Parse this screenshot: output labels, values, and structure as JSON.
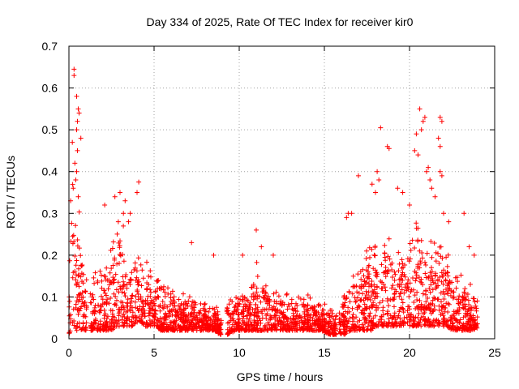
{
  "chart_data": {
    "type": "scatter",
    "title": "Day 334 of 2025, Rate Of TEC Index for receiver kir0",
    "xlabel": "GPS time / hours",
    "ylabel": "ROTI / TECUs",
    "xlim": [
      0,
      25
    ],
    "ylim": [
      0,
      0.7
    ],
    "xticks": [
      0,
      5,
      10,
      15,
      20,
      25
    ],
    "yticks": [
      0,
      0.1,
      0.2,
      0.3,
      0.4,
      0.5,
      0.6,
      0.7
    ],
    "xtick_labels": [
      "0",
      "5",
      "10",
      "15",
      "20",
      "25"
    ],
    "ytick_labels": [
      "0",
      "0.1",
      "0.2",
      "0.3",
      "0.4",
      "0.5",
      "0.6",
      "0.7"
    ],
    "grid": true,
    "marker": "plus",
    "color": "#ff0000",
    "envelope": {
      "hours": [
        0,
        0.1,
        0.2,
        0.3,
        0.4,
        0.5,
        0.6,
        0.7,
        0.8,
        1.0,
        1.3,
        1.6,
        1.9,
        2.2,
        2.5,
        2.8,
        3.1,
        3.4,
        3.7,
        4.0,
        4.2,
        4.5,
        4.8,
        5.1,
        5.4,
        5.7,
        6.0,
        6.3,
        6.6,
        7.0,
        7.5,
        8.0,
        8.5,
        8.9,
        9.3,
        9.8,
        10.3,
        10.8,
        11.0,
        11.3,
        11.8,
        12.3,
        12.8,
        13.3,
        13.8,
        14.3,
        14.8,
        15.3,
        15.8,
        16.2,
        16.6,
        17.0,
        17.4,
        17.8,
        18.0,
        18.2,
        18.5,
        18.8,
        19.1,
        19.4,
        19.7,
        20.0,
        20.3,
        20.5,
        20.8,
        21.1,
        21.4,
        21.7,
        21.9,
        22.2,
        22.5,
        22.8,
        23.1,
        23.4,
        23.7,
        24.0
      ],
      "typical_max": [
        0.25,
        0.3,
        0.45,
        0.38,
        0.32,
        0.35,
        0.3,
        0.25,
        0.2,
        0.15,
        0.12,
        0.18,
        0.2,
        0.18,
        0.22,
        0.25,
        0.28,
        0.22,
        0.2,
        0.24,
        0.22,
        0.18,
        0.17,
        0.15,
        0.14,
        0.13,
        0.12,
        0.11,
        0.1,
        0.1,
        0.09,
        0.08,
        0.08,
        0.06,
        0.1,
        0.11,
        0.12,
        0.14,
        0.18,
        0.15,
        0.12,
        0.12,
        0.12,
        0.1,
        0.1,
        0.1,
        0.09,
        0.08,
        0.08,
        0.12,
        0.15,
        0.17,
        0.2,
        0.22,
        0.25,
        0.22,
        0.26,
        0.3,
        0.22,
        0.2,
        0.22,
        0.25,
        0.3,
        0.28,
        0.24,
        0.22,
        0.25,
        0.26,
        0.22,
        0.2,
        0.18,
        0.16,
        0.14,
        0.13,
        0.12,
        0.1
      ],
      "floor": [
        0.01,
        0.02,
        0.03,
        0.03,
        0.02,
        0.02,
        0.02,
        0.02,
        0.02,
        0.02,
        0.02,
        0.02,
        0.02,
        0.02,
        0.02,
        0.03,
        0.03,
        0.03,
        0.03,
        0.04,
        0.04,
        0.03,
        0.03,
        0.03,
        0.02,
        0.02,
        0.02,
        0.02,
        0.02,
        0.02,
        0.02,
        0.02,
        0.02,
        0.01,
        0.01,
        0.02,
        0.02,
        0.02,
        0.02,
        0.02,
        0.02,
        0.02,
        0.02,
        0.02,
        0.02,
        0.02,
        0.02,
        0.01,
        0.01,
        0.01,
        0.02,
        0.02,
        0.02,
        0.02,
        0.03,
        0.03,
        0.03,
        0.03,
        0.03,
        0.03,
        0.03,
        0.03,
        0.03,
        0.03,
        0.03,
        0.03,
        0.03,
        0.03,
        0.03,
        0.03,
        0.02,
        0.02,
        0.02,
        0.02,
        0.02,
        0.02
      ]
    },
    "data_gaps": [
      [
        1.05,
        1.25
      ],
      [
        8.95,
        9.25
      ],
      [
        15.7,
        15.85
      ]
    ],
    "outliers": [
      [
        0.3,
        0.645
      ],
      [
        0.3,
        0.63
      ],
      [
        0.45,
        0.58
      ],
      [
        0.55,
        0.55
      ],
      [
        0.6,
        0.54
      ],
      [
        0.5,
        0.52
      ],
      [
        0.45,
        0.5
      ],
      [
        0.2,
        0.47
      ],
      [
        0.7,
        0.48
      ],
      [
        0.5,
        0.45
      ],
      [
        0.35,
        0.42
      ],
      [
        0.45,
        0.4
      ],
      [
        0.4,
        0.38
      ],
      [
        0.25,
        0.36
      ],
      [
        0.55,
        0.34
      ],
      [
        0.1,
        0.33
      ],
      [
        2.1,
        0.32
      ],
      [
        2.7,
        0.34
      ],
      [
        3.0,
        0.35
      ],
      [
        3.3,
        0.33
      ],
      [
        3.6,
        0.3
      ],
      [
        4.0,
        0.35
      ],
      [
        4.1,
        0.375
      ],
      [
        3.2,
        0.3
      ],
      [
        2.9,
        0.28
      ],
      [
        3.5,
        0.28
      ],
      [
        7.2,
        0.23
      ],
      [
        8.5,
        0.2
      ],
      [
        11.0,
        0.26
      ],
      [
        11.3,
        0.22
      ],
      [
        10.2,
        0.2
      ],
      [
        12.0,
        0.2
      ],
      [
        16.4,
        0.3
      ],
      [
        16.6,
        0.3
      ],
      [
        16.3,
        0.29
      ],
      [
        17.0,
        0.39
      ],
      [
        17.8,
        0.37
      ],
      [
        18.1,
        0.4
      ],
      [
        18.2,
        0.38
      ],
      [
        18.3,
        0.505
      ],
      [
        18.7,
        0.46
      ],
      [
        18.8,
        0.455
      ],
      [
        18.0,
        0.35
      ],
      [
        19.3,
        0.36
      ],
      [
        19.6,
        0.35
      ],
      [
        20.0,
        0.32
      ],
      [
        20.3,
        0.45
      ],
      [
        20.5,
        0.44
      ],
      [
        20.6,
        0.55
      ],
      [
        20.8,
        0.52
      ],
      [
        20.9,
        0.53
      ],
      [
        20.7,
        0.5
      ],
      [
        20.4,
        0.49
      ],
      [
        21.1,
        0.41
      ],
      [
        21.0,
        0.4
      ],
      [
        21.2,
        0.38
      ],
      [
        21.3,
        0.36
      ],
      [
        21.5,
        0.34
      ],
      [
        21.8,
        0.53
      ],
      [
        21.9,
        0.52
      ],
      [
        21.7,
        0.48
      ],
      [
        21.8,
        0.46
      ],
      [
        21.8,
        0.4
      ],
      [
        21.9,
        0.39
      ],
      [
        22.0,
        0.3
      ],
      [
        22.3,
        0.28
      ],
      [
        23.2,
        0.3
      ],
      [
        23.5,
        0.22
      ],
      [
        23.8,
        0.2
      ]
    ]
  }
}
